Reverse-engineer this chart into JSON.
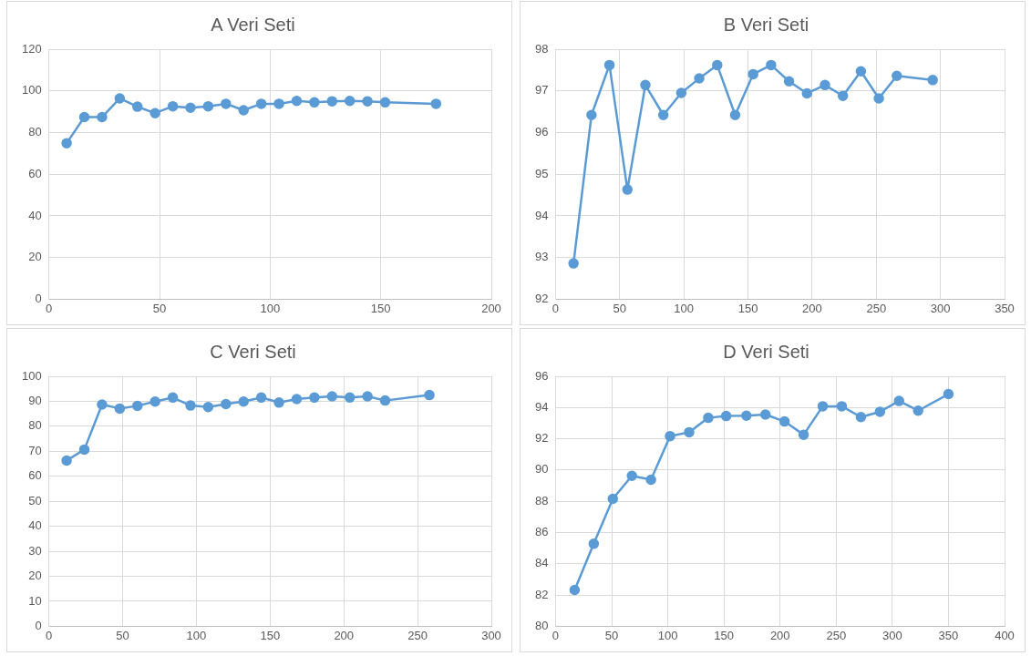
{
  "chart_data": [
    {
      "type": "line",
      "title": "A Veri Seti",
      "color": "#5b9bd5",
      "marker": "circle",
      "grid": true,
      "xlim": [
        0,
        200
      ],
      "xticks": [
        0,
        50,
        100,
        150,
        200
      ],
      "ylim": [
        0,
        120
      ],
      "yticks": [
        0,
        20,
        40,
        60,
        80,
        100,
        120
      ],
      "x": [
        8,
        16,
        24,
        32,
        40,
        48,
        56,
        64,
        72,
        80,
        88,
        96,
        104,
        112,
        120,
        128,
        136,
        144,
        152,
        175
      ],
      "values": [
        74.9,
        87.4,
        87.4,
        96.4,
        92.4,
        89.3,
        92.6,
        91.9,
        92.6,
        93.8,
        90.7,
        93.8,
        93.8,
        95.2,
        94.5,
        95,
        95.2,
        95,
        94.5,
        93.8
      ]
    },
    {
      "type": "line",
      "title": "B Veri Seti",
      "color": "#5b9bd5",
      "marker": "circle",
      "grid": true,
      "xlim": [
        0,
        350
      ],
      "xticks": [
        0,
        50,
        100,
        150,
        200,
        250,
        300,
        350
      ],
      "ylim": [
        92,
        98
      ],
      "yticks": [
        92,
        93,
        94,
        95,
        96,
        97,
        98
      ],
      "x": [
        14,
        28,
        42,
        56,
        70,
        84,
        98,
        112,
        126,
        140,
        154,
        168,
        182,
        196,
        210,
        224,
        238,
        252,
        266,
        294
      ],
      "values": [
        92.86,
        96.42,
        97.62,
        94.63,
        97.14,
        96.42,
        96.95,
        97.3,
        97.62,
        96.42,
        97.4,
        97.62,
        97.23,
        96.94,
        97.14,
        96.88,
        97.47,
        96.82,
        97.36,
        97.26
      ]
    },
    {
      "type": "line",
      "title": "C Veri Seti",
      "color": "#5b9bd5",
      "marker": "circle",
      "grid": true,
      "xlim": [
        0,
        300
      ],
      "xticks": [
        0,
        50,
        100,
        150,
        200,
        250,
        300
      ],
      "ylim": [
        0,
        100
      ],
      "yticks": [
        0,
        10,
        20,
        30,
        40,
        50,
        60,
        70,
        80,
        90,
        100
      ],
      "x": [
        12,
        24,
        36,
        48,
        60,
        72,
        84,
        96,
        108,
        120,
        132,
        144,
        156,
        168,
        180,
        192,
        204,
        216,
        228,
        258
      ],
      "values": [
        66.3,
        70.7,
        88.7,
        87.1,
        88.2,
        89.9,
        91.5,
        88.3,
        87.7,
        88.9,
        89.9,
        91.5,
        89.5,
        90.9,
        91.5,
        92,
        91.5,
        92,
        90.3,
        92.5
      ]
    },
    {
      "type": "line",
      "title": "D Veri Seti",
      "color": "#5b9bd5",
      "marker": "circle",
      "grid": true,
      "xlim": [
        0,
        400
      ],
      "xticks": [
        0,
        50,
        100,
        150,
        200,
        250,
        300,
        350,
        400
      ],
      "ylim": [
        80,
        96
      ],
      "yticks": [
        80,
        82,
        84,
        86,
        88,
        90,
        92,
        94,
        96
      ],
      "x": [
        17,
        34,
        51,
        68,
        85,
        102,
        119,
        136,
        152,
        170,
        187,
        204,
        221,
        238,
        255,
        272,
        289,
        306,
        323,
        350
      ],
      "values": [
        82.33,
        85.28,
        88.16,
        89.63,
        89.38,
        92.17,
        92.42,
        93.34,
        93.46,
        93.48,
        93.55,
        93.11,
        92.26,
        94.08,
        94.08,
        93.39,
        93.73,
        94.42,
        93.8,
        94.86
      ]
    }
  ]
}
